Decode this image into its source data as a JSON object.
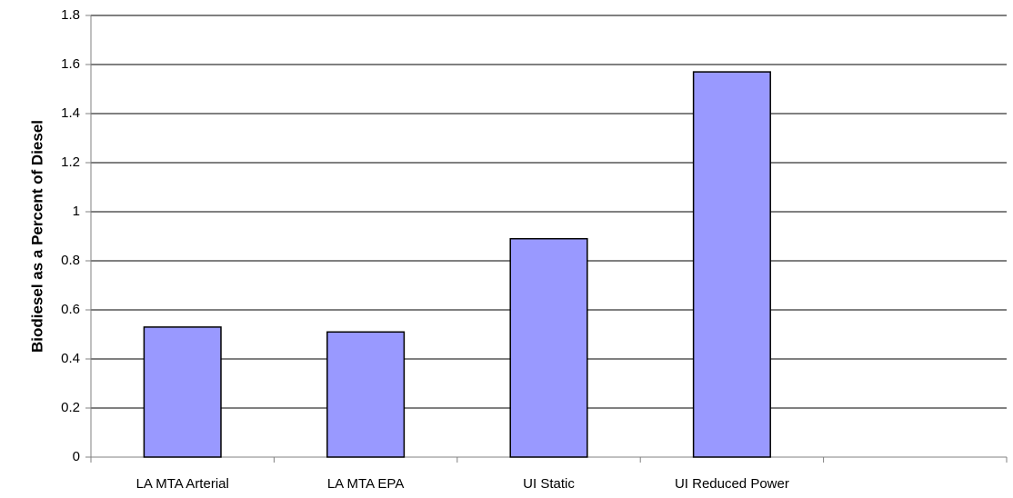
{
  "chart_data": {
    "type": "bar",
    "y_axis_label": "Biodiesel as a Percent of Diesel",
    "categories": [
      "LA MTA Arterial",
      "LA MTA EPA",
      "UI Static",
      "UI Reduced Power",
      null
    ],
    "values": [
      0.53,
      0.51,
      0.89,
      1.57,
      null
    ],
    "color": "#9999ff",
    "ylim": [
      0,
      1.8
    ],
    "yticks": [
      0,
      0.2,
      0.4,
      0.6,
      0.8,
      1,
      1.2,
      1.4,
      1.6,
      1.8
    ],
    "grid": true
  }
}
